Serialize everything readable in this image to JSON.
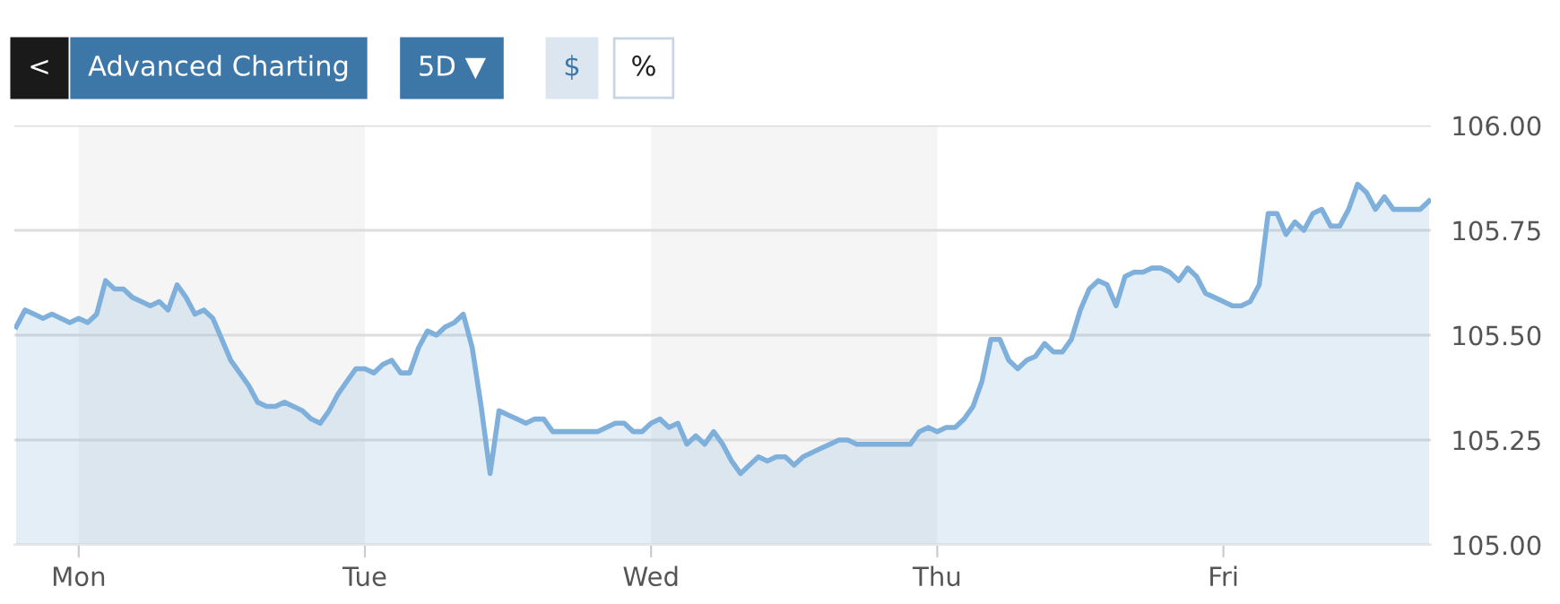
{
  "chart_data": {
    "type": "area",
    "annotations": [
      "<",
      "Advanced Charting",
      "5D ▼",
      "$",
      "%"
    ],
    "categories": [
      null,
      null,
      null,
      null,
      null,
      null,
      null,
      "Mon",
      null,
      null,
      null,
      null,
      null,
      null,
      null,
      null,
      null,
      null,
      null,
      null,
      null,
      null,
      null,
      null,
      null,
      null,
      null,
      null,
      null,
      null,
      null,
      null,
      null,
      null,
      null,
      null,
      null,
      null,
      null,
      "Tue",
      null,
      null,
      null,
      null,
      null,
      null,
      null,
      null,
      null,
      null,
      null,
      null,
      null,
      null,
      null,
      null,
      null,
      null,
      null,
      null,
      null,
      null,
      null,
      null,
      null,
      null,
      null,
      null,
      null,
      null,
      null,
      "Wed",
      null,
      null,
      null,
      null,
      null,
      null,
      null,
      null,
      null,
      null,
      null,
      null,
      null,
      null,
      null,
      null,
      null,
      null,
      null,
      null,
      null,
      null,
      null,
      null,
      null,
      null,
      null,
      null,
      null,
      null,
      null,
      "Thu",
      null,
      null,
      null,
      null,
      null,
      null,
      null,
      null,
      null,
      null,
      null,
      null,
      null,
      null,
      null,
      null,
      null,
      null,
      null,
      null,
      null,
      null,
      null,
      null,
      null,
      null,
      null,
      null,
      null,
      null,
      null,
      "Fri",
      null,
      null,
      null,
      null,
      null,
      null,
      null,
      null,
      null,
      null,
      null,
      null,
      null,
      null,
      null,
      null,
      null,
      null,
      null,
      null,
      null,
      null,
      null
    ],
    "ylim": [
      105.0,
      106.0
    ],
    "yticks": [
      {
        "value": 105.0,
        "label": "105.00"
      },
      {
        "value": 105.25,
        "label": "105.25"
      },
      {
        "value": 105.5,
        "label": "105.50"
      },
      {
        "value": 105.75,
        "label": "105.75"
      },
      {
        "value": 106.0,
        "label": "106.00"
      }
    ],
    "grid": "y",
    "bands": [
      {
        "axis": "x",
        "from": "Mon",
        "to": "Tue",
        "color": "#f5f5f5"
      },
      {
        "axis": "x",
        "from": "Wed",
        "to": "Thu",
        "color": "#f5f5f5"
      }
    ],
    "series": [
      {
        "color": "#7fb0dc",
        "values": [
          105.52,
          105.56,
          105.55,
          105.54,
          105.55,
          105.54,
          105.53,
          105.54,
          105.53,
          105.55,
          105.63,
          105.61,
          105.61,
          105.59,
          105.58,
          105.57,
          105.58,
          105.56,
          105.62,
          105.59,
          105.55,
          105.56,
          105.54,
          105.49,
          105.44,
          105.41,
          105.38,
          105.34,
          105.33,
          105.33,
          105.34,
          105.33,
          105.32,
          105.3,
          105.29,
          105.32,
          105.36,
          105.39,
          105.42,
          105.42,
          105.41,
          105.43,
          105.44,
          105.41,
          105.41,
          105.47,
          105.51,
          105.5,
          105.52,
          105.53,
          105.55,
          105.47,
          105.33,
          105.17,
          105.32,
          105.31,
          105.3,
          105.29,
          105.3,
          105.3,
          105.27,
          105.27,
          105.27,
          105.27,
          105.27,
          105.27,
          105.28,
          105.29,
          105.29,
          105.27,
          105.27,
          105.29,
          105.3,
          105.28,
          105.29,
          105.24,
          105.26,
          105.24,
          105.27,
          105.24,
          105.2,
          105.17,
          105.19,
          105.21,
          105.2,
          105.21,
          105.21,
          105.19,
          105.21,
          105.22,
          105.23,
          105.24,
          105.25,
          105.25,
          105.24,
          105.24,
          105.24,
          105.24,
          105.24,
          105.24,
          105.24,
          105.27,
          105.28,
          105.27,
          105.28,
          105.28,
          105.3,
          105.33,
          105.39,
          105.49,
          105.49,
          105.44,
          105.42,
          105.44,
          105.45,
          105.48,
          105.46,
          105.46,
          105.49,
          105.56,
          105.61,
          105.63,
          105.62,
          105.57,
          105.64,
          105.65,
          105.65,
          105.66,
          105.66,
          105.65,
          105.63,
          105.66,
          105.64,
          105.6,
          105.59,
          105.58,
          105.57,
          105.57,
          105.58,
          105.62,
          105.79,
          105.79,
          105.74,
          105.77,
          105.75,
          105.79,
          105.8,
          105.76,
          105.76,
          105.8,
          105.86,
          105.84,
          105.8,
          105.83,
          105.8,
          105.8,
          105.8,
          105.8,
          105.82
        ]
      }
    ]
  }
}
